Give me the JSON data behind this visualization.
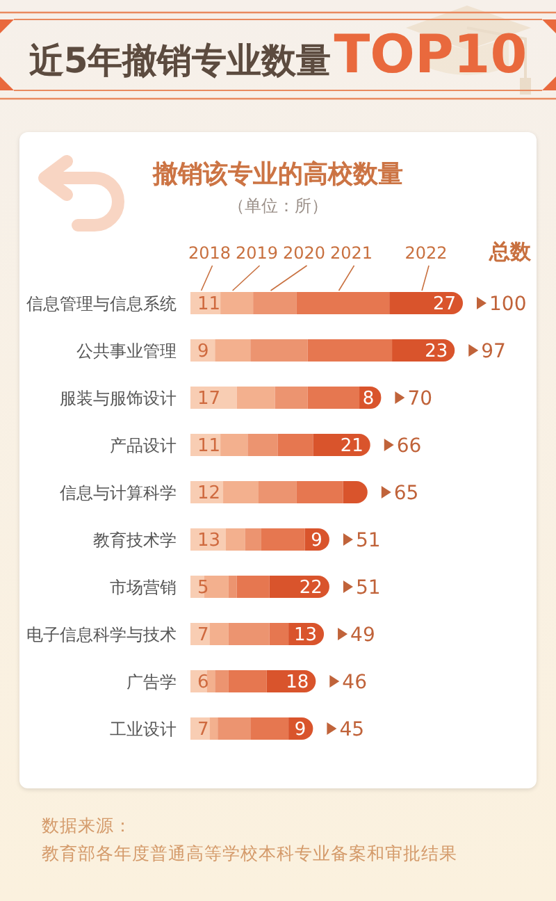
{
  "chart_data": {
    "type": "bar",
    "orientation": "horizontal",
    "stacked": true,
    "title": "近5年撤销专业数量TOP10",
    "subtitle": "撤销该专业的高校数量",
    "annotations": [
      "（单位：所）",
      "总数",
      "数据来源：",
      "教育部各年度普通高等学校本科专业备案和审批结果"
    ],
    "categories": [
      "信息管理与信息系统",
      "公共事业管理",
      "服装与服饰设计",
      "产品设计",
      "信息与计算科学",
      "教育技术学",
      "市场营销",
      "电子信息科学与技术",
      "广告学",
      "工业设计"
    ],
    "series": [
      {
        "name": "2018",
        "color": "#f8cdb3",
        "values": [
          11,
          9,
          17,
          11,
          12,
          13,
          5,
          7,
          6,
          7
        ],
        "value_labels": [
          "11",
          "9",
          "17",
          "11",
          "12",
          "13",
          "5",
          "7",
          "6",
          "7"
        ]
      },
      {
        "name": "2019",
        "color": "#f3b08e",
        "values": [
          12,
          13,
          14,
          10,
          13,
          7,
          9,
          7,
          3,
          3
        ]
      },
      {
        "name": "2020",
        "color": "#ec9470",
        "values": [
          16,
          21,
          12,
          11,
          14,
          6,
          3,
          15,
          5,
          12
        ]
      },
      {
        "name": "2021",
        "color": "#e67750",
        "values": [
          34,
          31,
          19,
          13,
          17,
          16,
          12,
          7,
          14,
          14
        ]
      },
      {
        "name": "2022",
        "color": "#d9542c",
        "values": [
          27,
          23,
          8,
          21,
          9,
          9,
          22,
          13,
          18,
          9
        ],
        "value_labels": [
          "27",
          "23",
          "8",
          "21",
          null,
          "9",
          "22",
          "13",
          "18",
          "9"
        ]
      }
    ],
    "totals": [
      "100",
      "97",
      "70",
      "66",
      "65",
      "51",
      "51",
      "49",
      "46",
      "45"
    ],
    "legend": "top",
    "tick_labels": "y"
  }
}
